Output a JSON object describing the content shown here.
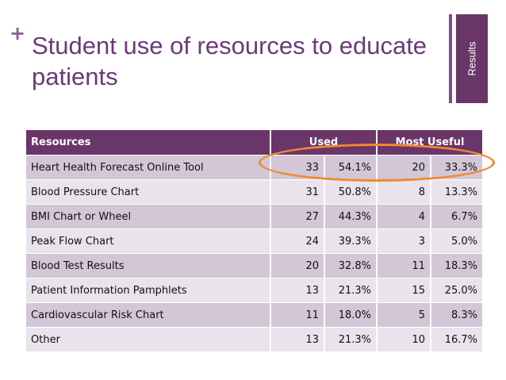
{
  "slide": {
    "plus": "+",
    "title": "Student use of resources to educate patients",
    "side_tab": "Results"
  },
  "table": {
    "headers": {
      "resources": "Resources",
      "used": "Used",
      "most_useful": "Most Useful"
    },
    "rows": [
      {
        "resource": "Heart Health Forecast Online Tool",
        "used_n": "33",
        "used_pct": "54.1%",
        "useful_n": "20",
        "useful_pct": "33.3%"
      },
      {
        "resource": "Blood Pressure Chart",
        "used_n": "31",
        "used_pct": "50.8%",
        "useful_n": "8",
        "useful_pct": "13.3%"
      },
      {
        "resource": "BMI Chart or Wheel",
        "used_n": "27",
        "used_pct": "44.3%",
        "useful_n": "4",
        "useful_pct": "6.7%"
      },
      {
        "resource": "Peak Flow Chart",
        "used_n": "24",
        "used_pct": "39.3%",
        "useful_n": "3",
        "useful_pct": "5.0%"
      },
      {
        "resource": "Blood Test Results",
        "used_n": "20",
        "used_pct": "32.8%",
        "useful_n": "11",
        "useful_pct": "18.3%"
      },
      {
        "resource": "Patient Information Pamphlets",
        "used_n": "13",
        "used_pct": "21.3%",
        "useful_n": "15",
        "useful_pct": "25.0%"
      },
      {
        "resource": "Cardiovascular Risk Chart",
        "used_n": "11",
        "used_pct": "18.0%",
        "useful_n": "5",
        "useful_pct": "8.3%"
      },
      {
        "resource": "Other",
        "used_n": "13",
        "used_pct": "21.3%",
        "useful_n": "10",
        "useful_pct": "16.7%"
      }
    ]
  },
  "colors": {
    "header": "#6a3569",
    "row_dark": "#d2c6d7",
    "row_light": "#e9e3eb",
    "highlight_oval": "#ef8a2e",
    "title": "#6b3a78"
  }
}
